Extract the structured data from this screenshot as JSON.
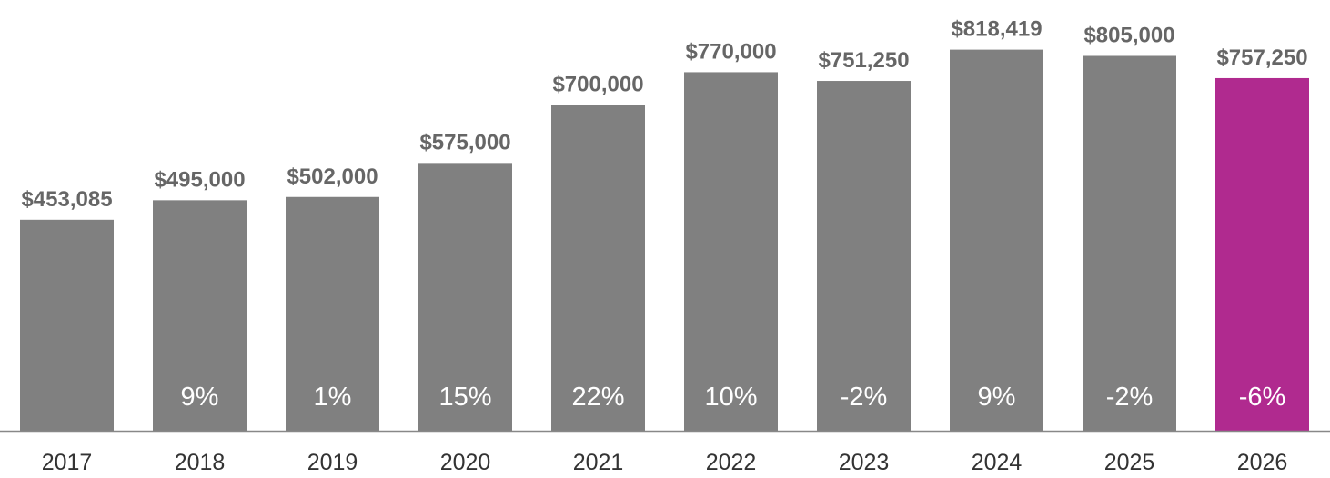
{
  "chart_data": {
    "type": "bar",
    "categories": [
      "2017",
      "2018",
      "2019",
      "2020",
      "2021",
      "2022",
      "2023",
      "2024",
      "2025",
      "2026"
    ],
    "values": [
      453085,
      495000,
      502000,
      575000,
      700000,
      770000,
      751250,
      818419,
      805000,
      757250
    ],
    "value_labels": [
      "$453,085",
      "$495,000",
      "$502,000",
      "$575,000",
      "$700,000",
      "$770,000",
      "$751,250",
      "$818,419",
      "$805,000",
      "$757,250"
    ],
    "change_labels": [
      "",
      "9%",
      "1%",
      "15%",
      "22%",
      "10%",
      "-2%",
      "9%",
      "-2%",
      "-6%"
    ],
    "title": "",
    "xlabel": "",
    "ylabel": "",
    "ylim": [
      0,
      925000
    ],
    "grid": false,
    "legend": "none",
    "highlight_index": 9,
    "colors": {
      "bar": "#808080",
      "highlight": "#b02a8f",
      "axis": "#888888",
      "value_text": "#666666",
      "change_text": "#ffffff",
      "tick_text": "#333333"
    }
  }
}
